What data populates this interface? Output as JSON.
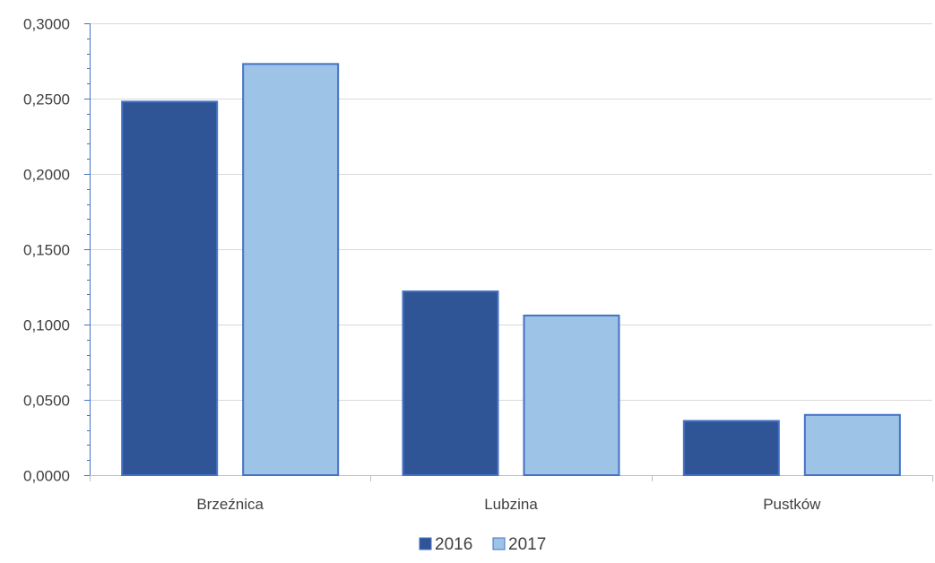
{
  "chart_data": {
    "type": "bar",
    "categories": [
      "Brzeźnica",
      "Lubzina",
      "Pustków"
    ],
    "series": [
      {
        "name": "2016",
        "values": [
          0.248,
          0.122,
          0.036
        ],
        "color": "#2F5597",
        "border": "#4472C4"
      },
      {
        "name": "2017",
        "values": [
          0.273,
          0.106,
          0.04
        ],
        "color": "#9DC3E6",
        "border": "#4472C4"
      }
    ],
    "ylim": [
      0,
      0.3
    ],
    "yticks": [
      "0,0000",
      "0,0500",
      "0,1000",
      "0,1500",
      "0,2000",
      "0,2500",
      "0,3000"
    ],
    "grid": true,
    "legend": "bottom-center",
    "title": "",
    "xlabel": "",
    "ylabel": ""
  }
}
